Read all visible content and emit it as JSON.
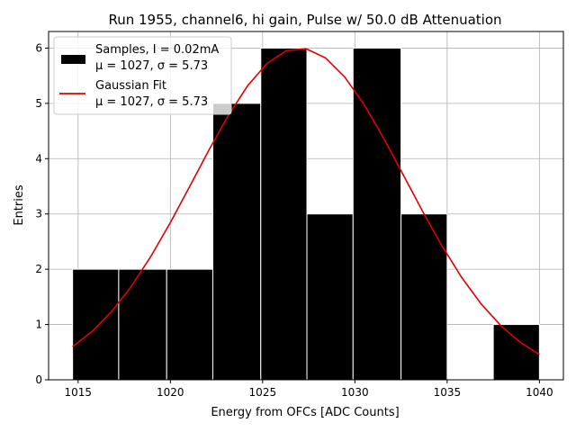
{
  "chart_data": {
    "type": "bar",
    "title": "Run 1955, channel6, hi gain, Pulse w/ 50.0 dB Attenuation",
    "xlabel": "Energy from OFCs [ADC Counts]",
    "ylabel": "Entries",
    "xlim": [
      1013.4,
      1041.3
    ],
    "ylim": [
      0,
      6.3
    ],
    "xticks": [
      1015,
      1020,
      1025,
      1030,
      1035,
      1040
    ],
    "yticks": [
      0,
      1,
      2,
      3,
      4,
      5,
      6
    ],
    "grid": true,
    "legend_position": "upper left",
    "histogram": {
      "bin_edges": [
        1014.7,
        1017.2,
        1019.8,
        1022.3,
        1024.9,
        1027.4,
        1029.9,
        1032.5,
        1035.0,
        1037.5,
        1040.0
      ],
      "counts": [
        2,
        2,
        2,
        5,
        6,
        3,
        6,
        3,
        0,
        1
      ],
      "color": "#000000",
      "edgecolor": "#ffffff"
    },
    "fit": {
      "type": "gaussian",
      "mu": 1027,
      "sigma": 5.73,
      "amplitude": 6.0,
      "x_range": [
        1014.7,
        1040.0
      ],
      "color": "#e00000"
    },
    "series": [
      {
        "name": "Samples, I = 0.02mA",
        "name2": "μ = 1027, σ = 5.73",
        "kind": "histogram"
      },
      {
        "name": "Gaussian Fit",
        "name2": "μ = 1027, σ = 5.73",
        "kind": "line"
      }
    ]
  }
}
